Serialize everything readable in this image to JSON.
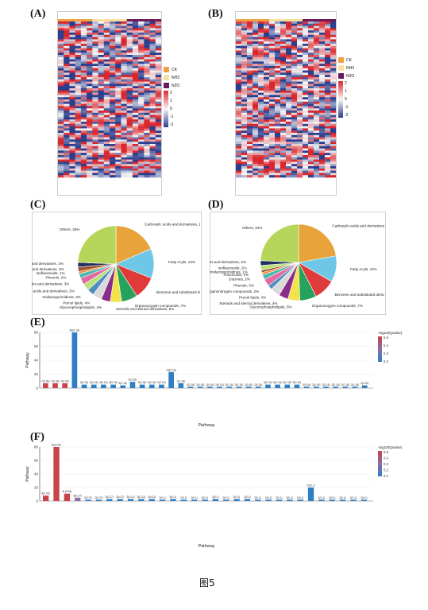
{
  "panels": {
    "A": "(A)",
    "B": "(B)",
    "C": "(C)",
    "D": "(D)",
    "E": "(E)",
    "F": "(F)"
  },
  "heatmap_legend": {
    "groups": [
      "CK",
      "NH3",
      "N2O"
    ],
    "group_colors": [
      "#f0a040",
      "#f6e0a0",
      "#6a1a5a"
    ],
    "ticks": [
      "2",
      "1",
      "0",
      "-1",
      "-2"
    ]
  },
  "chart_data": [
    {
      "type": "pie",
      "panel": "C",
      "slices": [
        {
          "label": "Carboxylic acids and derivatives, 19%",
          "value": 19,
          "color": "#e8a33a"
        },
        {
          "label": "Fatty Acyls, 13%",
          "value": 13,
          "color": "#6fc7e8"
        },
        {
          "label": "Benzene and substituted derivatives, 10%",
          "value": 10,
          "color": "#e03b3b"
        },
        {
          "label": "Organooxygen compounds, 7%",
          "value": 7,
          "color": "#27a25c"
        },
        {
          "label": "Steroids and steroid derivatives, 5%",
          "value": 5,
          "color": "#f2e34a"
        },
        {
          "label": "Glycerophospholipids, 4%",
          "value": 4,
          "color": "#8a2d8a"
        },
        {
          "label": "Prenol lipids, 4%",
          "value": 4,
          "color": "#d9d9d9"
        },
        {
          "label": "Imidazopyrimidines, 3%",
          "value": 3,
          "color": "#4f8fbf"
        },
        {
          "label": "Hydroxy acids and derivatives, 3%",
          "value": 3,
          "color": "#b9e27c"
        },
        {
          "label": "Indoles and derivatives, 3%",
          "value": 3,
          "color": "#e26aa0"
        },
        {
          "label": "Phenols, 2%",
          "value": 2,
          "color": "#4ab8b0"
        },
        {
          "label": "Isoflavonoids, 1%",
          "value": 1,
          "color": "#f08a3a"
        },
        {
          "label": "Pyridines and derivatives, 2%",
          "value": 2,
          "color": "#a0522d"
        },
        {
          "label": "Quinolines and derivatives, 2%",
          "value": 2,
          "color": "#1f2f5f"
        },
        {
          "label": "Others, 25%",
          "value": 25,
          "color": "#b5d65a"
        }
      ]
    },
    {
      "type": "pie",
      "panel": "D",
      "slices": [
        {
          "label": "Carboxylic acids and derivatives, 22%",
          "value": 22,
          "color": "#e8a33a"
        },
        {
          "label": "Fatty Acyls, 11%",
          "value": 11,
          "color": "#6fc7e8"
        },
        {
          "label": "Benzene and substituted derivatives, 9%",
          "value": 9,
          "color": "#e03b3b"
        },
        {
          "label": "Organooxygen compounds, 7%",
          "value": 7,
          "color": "#27a25c"
        },
        {
          "label": "Glycerophospholipids, 5%",
          "value": 5,
          "color": "#f2e34a"
        },
        {
          "label": "Steroids and steroid derivatives, 4%",
          "value": 4,
          "color": "#8a2d8a"
        },
        {
          "label": "Prenol lipids, 4%",
          "value": 4,
          "color": "#d9d9d9"
        },
        {
          "label": "Organonitrogen compounds, 2%",
          "value": 2,
          "color": "#4f8fbf"
        },
        {
          "label": "Phenols, 3%",
          "value": 3,
          "color": "#e26aa0"
        },
        {
          "label": "Diazines, 2%",
          "value": 2,
          "color": "#4ab8b0"
        },
        {
          "label": "Flavonoids, 1%",
          "value": 1,
          "color": "#f08a3a"
        },
        {
          "label": "Imidazopyrimidines, 1%",
          "value": 1,
          "color": "#a0522d"
        },
        {
          "label": "Isoflavonoids, 2%",
          "value": 2,
          "color": "#b9e27c"
        },
        {
          "label": "Quinolines and derivatives, 2%",
          "value": 2,
          "color": "#1f2f5f"
        },
        {
          "label": "Others, 24%",
          "value": 24,
          "color": "#b5d65a"
        }
      ]
    },
    {
      "type": "bar",
      "panel": "E",
      "xlabel": "Pathway",
      "ylabel": "Pathway",
      "ylim": [
        0,
        80
      ],
      "yticks": [
        0,
        20,
        40,
        60,
        80
      ],
      "legend_title": "-log10(Qvalue)",
      "legend_ticks": [
        "0.5",
        "0.4",
        "0.3",
        "0.2"
      ],
      "bar_labels": [
        "7(0.06)",
        "7(0.06)",
        "7(0.06)",
        "80(0.18)",
        "5(0.18)",
        "5(0.18)",
        "5(0.18)",
        "5(0.18)",
        "4(0.18)",
        "9(0.18)",
        "5(0.18)",
        "5(0.18)",
        "5(0.18)",
        "23(0.18)",
        "7(0.18)",
        "2(0.18)",
        "2(0.18)",
        "2(0.18)",
        "2(0.18)",
        "2(0.18)",
        "2(0.18)",
        "2(0.18)",
        "2(0.18)",
        "5(0.18)",
        "5(0.18)",
        "5(0.18)",
        "5(0.18)",
        "2(0.18)",
        "2(0.18)",
        "2(0.18)",
        "2(0.18)",
        "2(0.18)",
        "2(0.18)",
        "4(0.18)"
      ],
      "values": [
        7,
        7,
        7,
        80,
        5,
        5,
        5,
        5,
        4,
        9,
        5,
        5,
        5,
        23,
        7,
        2,
        2,
        2,
        2,
        2,
        2,
        2,
        2,
        5,
        5,
        5,
        5,
        2,
        2,
        2,
        2,
        2,
        2,
        4
      ],
      "colors": [
        "#c9434b",
        "#c9434b",
        "#c9434b",
        "#2f7fc4",
        "#2f7fc4",
        "#2f7fc4",
        "#2f7fc4",
        "#2f7fc4",
        "#2f7fc4",
        "#2f7fc4",
        "#2f7fc4",
        "#2f7fc4",
        "#2f7fc4",
        "#2f7fc4",
        "#2f7fc4",
        "#2f7fc4",
        "#2f7fc4",
        "#2f7fc4",
        "#2f7fc4",
        "#2f7fc4",
        "#2f7fc4",
        "#2f7fc4",
        "#2f7fc4",
        "#2f7fc4",
        "#2f7fc4",
        "#2f7fc4",
        "#2f7fc4",
        "#2f7fc4",
        "#2f7fc4",
        "#2f7fc4",
        "#2f7fc4",
        "#2f7fc4",
        "#2f7fc4",
        "#2f7fc4"
      ]
    },
    {
      "type": "bar",
      "panel": "F",
      "xlabel": "Pathway",
      "ylabel": "Pathway",
      "ylim": [
        0,
        80
      ],
      "yticks": [
        0,
        20,
        40,
        60,
        80
      ],
      "legend_title": "-log10(Qvalue)",
      "legend_ticks": [
        "0.5",
        "0.4",
        "0.3",
        "0.2",
        "0.1"
      ],
      "bar_labels": [
        "8(0.05)",
        "80(0.05)",
        "11(0.08)",
        "5(0.27)",
        "2(0.27)",
        "2(0.27)",
        "3(0.27)",
        "3(0.27)",
        "3(0.12)",
        "3(0.12)",
        "3(0.12)",
        "2(0.1)",
        "3(0.1)",
        "2(0.1)",
        "2(0.1)",
        "2(0.1)",
        "3(0.1)",
        "2(0.1)",
        "3(0.1)",
        "3(0.1)",
        "2(0.1)",
        "2(0.1)",
        "2(0.1)",
        "2(0.1)",
        "2(0.1)",
        "20(0.1)",
        "2(0.1)",
        "2(0.1)",
        "2(0.1)",
        "2(0.1)",
        "2(0.1)"
      ],
      "values": [
        8,
        80,
        11,
        5,
        2,
        2,
        3,
        3,
        3,
        3,
        3,
        2,
        3,
        2,
        2,
        2,
        3,
        2,
        3,
        3,
        2,
        2,
        2,
        2,
        2,
        20,
        2,
        2,
        2,
        2,
        2
      ],
      "colors": [
        "#c9434b",
        "#c9434b",
        "#c9434b",
        "#8a6fa8",
        "#2f7fc4",
        "#2f7fc4",
        "#2f7fc4",
        "#2f7fc4",
        "#2f7fc4",
        "#2f7fc4",
        "#2f7fc4",
        "#2f7fc4",
        "#2f7fc4",
        "#2f7fc4",
        "#2f7fc4",
        "#2f7fc4",
        "#2f7fc4",
        "#2f7fc4",
        "#2f7fc4",
        "#2f7fc4",
        "#2f7fc4",
        "#2f7fc4",
        "#2f7fc4",
        "#2f7fc4",
        "#2f7fc4",
        "#2f7fc4",
        "#2f7fc4",
        "#2f7fc4",
        "#2f7fc4",
        "#2f7fc4",
        "#2f7fc4"
      ]
    }
  ],
  "caption": "图5"
}
